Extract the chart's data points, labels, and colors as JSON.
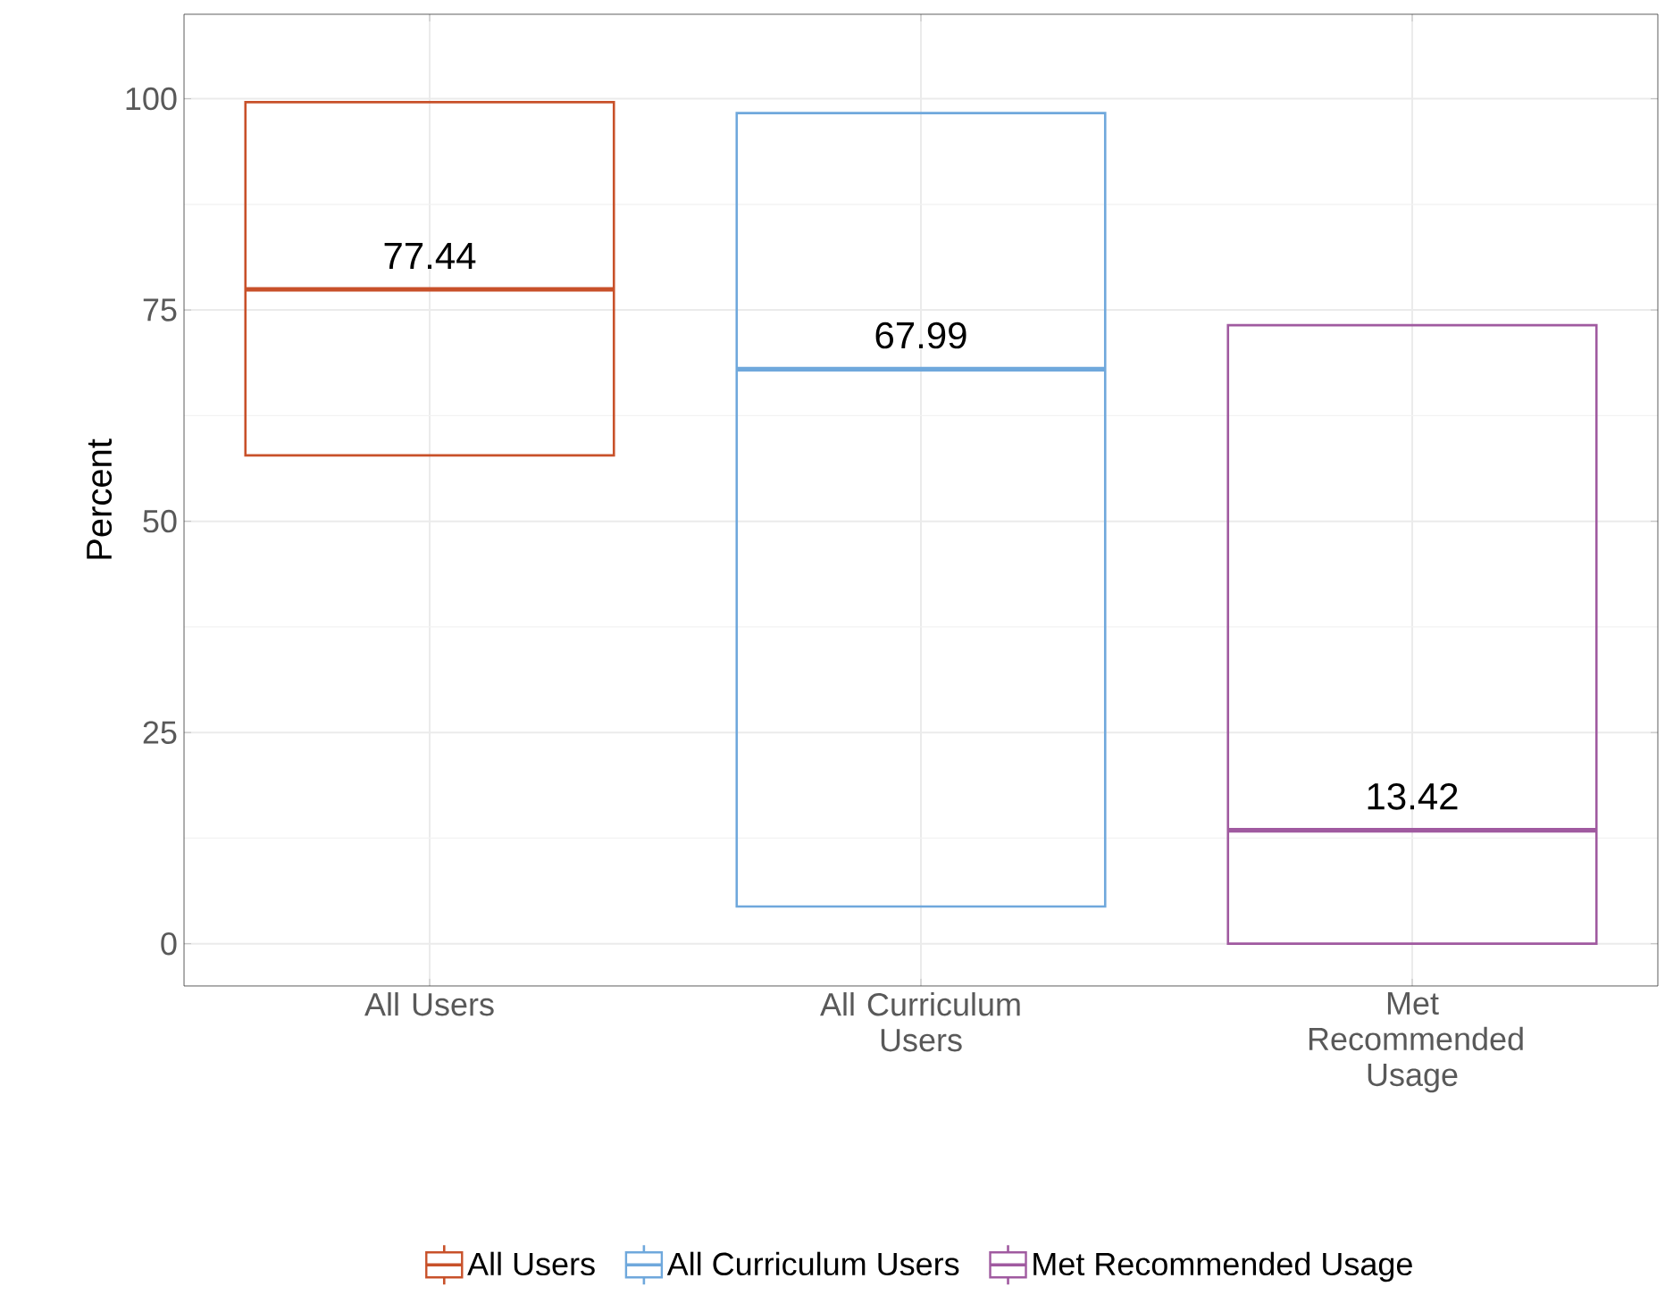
{
  "chart_data": {
    "type": "box",
    "ylabel": "Percent",
    "categories": [
      "All Users",
      "All Curriculum Users",
      "Met Recommended Usage"
    ],
    "series": [
      {
        "name": "All Users",
        "color": "#c8512a",
        "boxes": [
          {
            "low": 57.8,
            "q1": 57.8,
            "median": 77.44,
            "q3": 99.6,
            "high": 99.6
          },
          null,
          null
        ]
      },
      {
        "name": "All Curriculum Users",
        "color": "#6fa8dc",
        "boxes": [
          null,
          {
            "low": 4.4,
            "q1": 4.4,
            "median": 67.99,
            "q3": 98.3,
            "high": 98.3
          },
          null
        ]
      },
      {
        "name": "Met Recommended Usage",
        "color": "#a05aa0",
        "boxes": [
          null,
          null,
          {
            "low": 0,
            "q1": 0,
            "median": 13.42,
            "q3": 73.2,
            "high": 73.2
          }
        ]
      }
    ],
    "annotations": [
      {
        "text": "77.44",
        "x": "All Users",
        "y": 77.44
      },
      {
        "text": "67.99",
        "x": "All Curriculum Users",
        "y": 67.99
      },
      {
        "text": "13.42",
        "x": "Met Recommended Usage",
        "y": 13.42
      }
    ],
    "ylim": [
      -5,
      110
    ],
    "yticks": [
      0,
      25,
      50,
      75,
      100
    ],
    "grid": true,
    "legend": "bottom"
  }
}
